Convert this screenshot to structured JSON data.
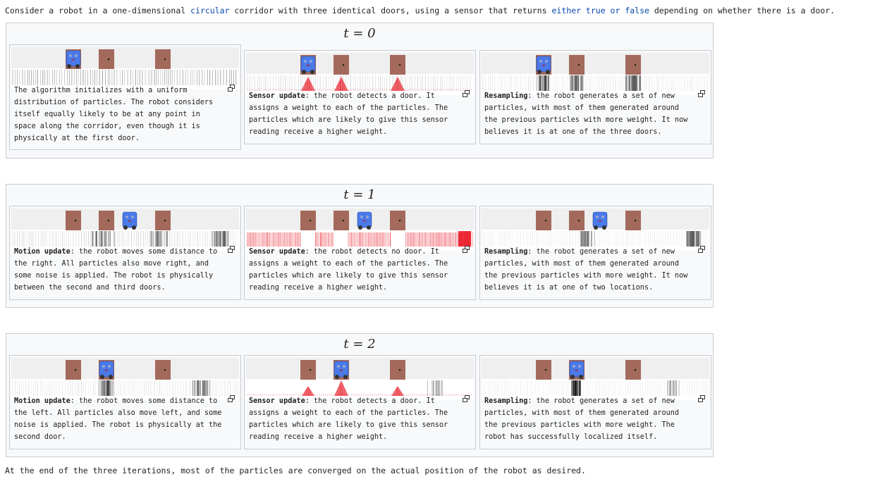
{
  "intro": {
    "p1": "Consider a robot in a one-dimensional ",
    "link1": "circular",
    "p2": " corridor with three identical doors, using a sensor that returns ",
    "link2": "either true or false",
    "p3": " depending on whether there is a door."
  },
  "outro": "At the end of the three iterations, most of the particles are converged on the actual position of the robot as desired.",
  "icons": {
    "magnify": "magnify-clip-icon",
    "robot": "robot-icon",
    "door": "door-icon"
  },
  "colors": {
    "link": "#0645ad",
    "door": "#a36a5c",
    "robot": "#4a79e8",
    "weight": "#e8121e"
  },
  "groups": [
    {
      "title": "t = 0",
      "panels": [
        {
          "bold": "",
          "text": "The algorithm initializes with a uniform distribution of particles. The robot considers itself equally likely to be at any point in space along the corridor, even though it is physically at the first door.",
          "robot_position": 1
        },
        {
          "bold": "Sensor update",
          "text": ": the robot detects a door. It assigns a weight to each of the particles. The particles which are likely to give this sensor reading receive a higher weight.",
          "robot_position": 1
        },
        {
          "bold": "Resampling",
          "text": ": the robot generates a set of new particles, with most of them generated around the previous particles with more weight. It now believes it is at one of the three doors.",
          "robot_position": 1
        }
      ]
    },
    {
      "title": "t = 1",
      "panels": [
        {
          "bold": "Motion update",
          "text": ": the robot moves some distance to the right. All particles also move right, and some noise is applied. The robot is physically between the second and third doors.",
          "robot_position": 2.5
        },
        {
          "bold": "Sensor update",
          "text": ": the robot detects no door. It assigns a weight to each of the particles. The particles which are likely to give this sensor reading receive a higher weight.",
          "robot_position": 2.5
        },
        {
          "bold": "Resampling",
          "text": ": the robot generates a set of new particles, with most of them generated around the previous particles with more weight. It now believes it is at one of two locations.",
          "robot_position": 2.5
        }
      ]
    },
    {
      "title": "t = 2",
      "panels": [
        {
          "bold": "Motion update",
          "text": ": the robot moves some distance to the left. All particles also move left, and some noise is applied. The robot is physically at the second door.",
          "robot_position": 2
        },
        {
          "bold": "Sensor update",
          "text": ": the robot detects a door. It assigns a weight to each of the particles. The particles which are likely to give this sensor reading receive a higher weight.",
          "robot_position": 2
        },
        {
          "bold": "Resampling",
          "text": ": the robot generates a set of new particles, with most of them generated around the previous particles with more weight. The robot has successfully localized itself.",
          "robot_position": 2
        }
      ]
    }
  ]
}
